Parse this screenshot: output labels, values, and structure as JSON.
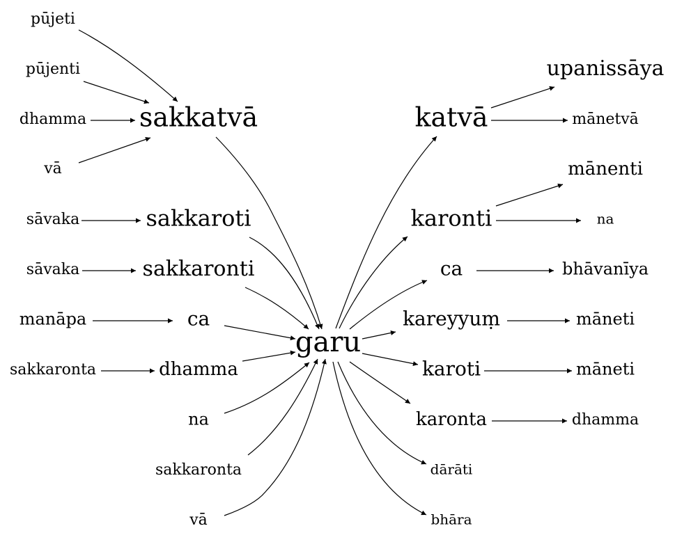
{
  "nodes": [
    {
      "id": "pujeti",
      "label": "pūjeti"
    },
    {
      "id": "pujenti",
      "label": "pūjenti"
    },
    {
      "id": "dhamma_l1",
      "label": "dhamma"
    },
    {
      "id": "va_l1",
      "label": "vā"
    },
    {
      "id": "sakkatva",
      "label": "sakkatvā"
    },
    {
      "id": "savaka1",
      "label": "sāvaka"
    },
    {
      "id": "sakkaroti",
      "label": "sakkaroti"
    },
    {
      "id": "savaka2",
      "label": "sāvaka"
    },
    {
      "id": "sakkaronti",
      "label": "sakkaronti"
    },
    {
      "id": "manapa",
      "label": "manāpa"
    },
    {
      "id": "ca_l",
      "label": "ca"
    },
    {
      "id": "sakkaronta_l",
      "label": "sakkaronta"
    },
    {
      "id": "dhamma_l2",
      "label": "dhamma"
    },
    {
      "id": "na_l",
      "label": "na"
    },
    {
      "id": "sakkaronta_l2",
      "label": "sakkaronta"
    },
    {
      "id": "va_l2",
      "label": "vā"
    },
    {
      "id": "garu",
      "label": "garu"
    },
    {
      "id": "katva",
      "label": "katvā"
    },
    {
      "id": "upanissaya",
      "label": "upanissāya"
    },
    {
      "id": "manetva",
      "label": "mānetvā"
    },
    {
      "id": "karonti",
      "label": "karonti"
    },
    {
      "id": "manenti",
      "label": "mānenti"
    },
    {
      "id": "na_r",
      "label": "na"
    },
    {
      "id": "ca_r",
      "label": "ca"
    },
    {
      "id": "bhavaniya",
      "label": "bhāvanīya"
    },
    {
      "id": "kareyyum",
      "label": "kareyyuṃ"
    },
    {
      "id": "maneti1",
      "label": "māneti"
    },
    {
      "id": "karoti",
      "label": "karoti"
    },
    {
      "id": "maneti2",
      "label": "māneti"
    },
    {
      "id": "karonta",
      "label": "karonta"
    },
    {
      "id": "dhamma_r",
      "label": "dhamma"
    },
    {
      "id": "darati",
      "label": "dārāti"
    },
    {
      "id": "bhara",
      "label": "bhāra"
    }
  ],
  "edges": [
    {
      "from": "pujeti",
      "to": "sakkatva"
    },
    {
      "from": "pujenti",
      "to": "sakkatva"
    },
    {
      "from": "dhamma_l1",
      "to": "sakkatva"
    },
    {
      "from": "va_l1",
      "to": "sakkatva"
    },
    {
      "from": "sakkatva",
      "to": "garu"
    },
    {
      "from": "savaka1",
      "to": "sakkaroti"
    },
    {
      "from": "sakkaroti",
      "to": "garu"
    },
    {
      "from": "savaka2",
      "to": "sakkaronti"
    },
    {
      "from": "sakkaronti",
      "to": "garu"
    },
    {
      "from": "manapa",
      "to": "ca_l"
    },
    {
      "from": "ca_l",
      "to": "garu"
    },
    {
      "from": "sakkaronta_l",
      "to": "dhamma_l2"
    },
    {
      "from": "dhamma_l2",
      "to": "garu"
    },
    {
      "from": "na_l",
      "to": "garu"
    },
    {
      "from": "sakkaronta_l2",
      "to": "garu"
    },
    {
      "from": "va_l2",
      "to": "garu"
    },
    {
      "from": "garu",
      "to": "katva"
    },
    {
      "from": "katva",
      "to": "upanissaya"
    },
    {
      "from": "katva",
      "to": "manetva"
    },
    {
      "from": "garu",
      "to": "karonti"
    },
    {
      "from": "karonti",
      "to": "manenti"
    },
    {
      "from": "karonti",
      "to": "na_r"
    },
    {
      "from": "garu",
      "to": "ca_r"
    },
    {
      "from": "ca_r",
      "to": "bhavaniya"
    },
    {
      "from": "garu",
      "to": "kareyyum"
    },
    {
      "from": "kareyyum",
      "to": "maneti1"
    },
    {
      "from": "garu",
      "to": "karoti"
    },
    {
      "from": "karoti",
      "to": "maneti2"
    },
    {
      "from": "garu",
      "to": "karonta"
    },
    {
      "from": "karonta",
      "to": "dhamma_r"
    },
    {
      "from": "garu",
      "to": "darati"
    },
    {
      "from": "garu",
      "to": "bhara"
    }
  ]
}
